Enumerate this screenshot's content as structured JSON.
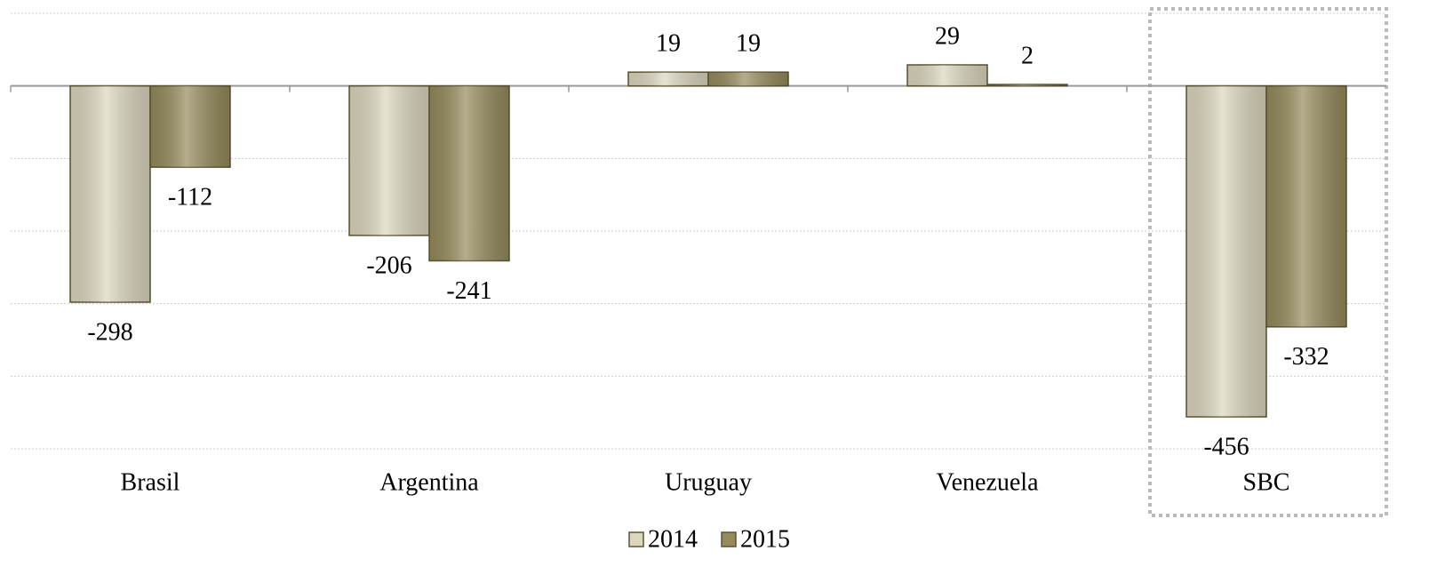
{
  "chart_data": {
    "type": "bar",
    "categories": [
      "Brasil",
      "Argentina",
      "Uruguay",
      "Venezuela",
      "SBC"
    ],
    "series": [
      {
        "name": "2014",
        "color": "#dcd7bf",
        "values": [
          -298,
          -206,
          19,
          29,
          -456
        ]
      },
      {
        "name": "2015",
        "color": "#958b5b",
        "values": [
          -112,
          -241,
          19,
          2,
          -332
        ]
      }
    ],
    "ylim": [
      -500,
      100
    ],
    "yticks": [
      -500,
      -400,
      -300,
      -200,
      -100,
      0,
      100
    ],
    "grid": true,
    "legend": "bottom"
  }
}
